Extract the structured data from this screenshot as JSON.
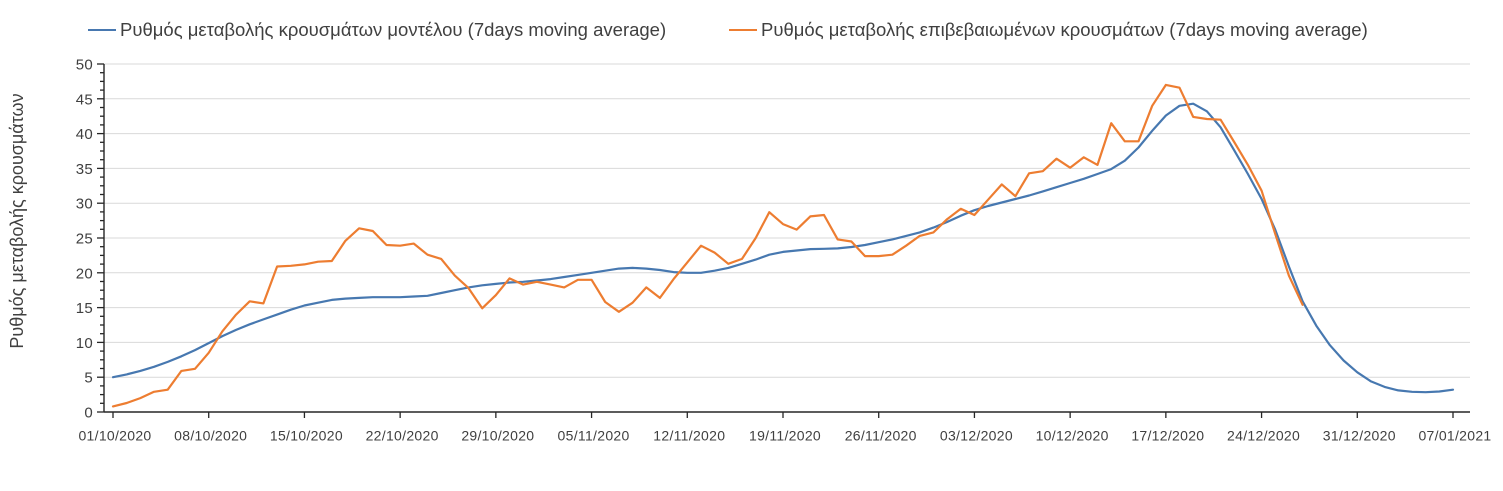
{
  "chart_data": {
    "type": "line",
    "title": "",
    "xlabel": "",
    "ylabel": "Ρυθμός μεταβολής κρουσμάτων",
    "ylim": [
      0,
      50
    ],
    "ytick_step": 5,
    "y_minor_step": 1.25,
    "grid": true,
    "legend_position": "top",
    "x_tick_labels": [
      "01/10/2020",
      "08/10/2020",
      "15/10/2020",
      "22/10/2020",
      "29/10/2020",
      "05/11/2020",
      "12/11/2020",
      "19/11/2020",
      "26/11/2020",
      "03/12/2020",
      "10/12/2020",
      "17/12/2020",
      "24/12/2020",
      "31/12/2020",
      "07/01/2021"
    ],
    "x_tick_interval_days": 7,
    "series": [
      {
        "name": "Ρυθμός μεταβολής κρουσμάτων μοντέλου (7days moving average)",
        "color": "#4778b0",
        "values": [
          5.0,
          5.4,
          5.9,
          6.5,
          7.2,
          8.0,
          8.9,
          9.9,
          10.9,
          11.8,
          12.6,
          13.3,
          14.0,
          14.7,
          15.3,
          15.7,
          16.1,
          16.3,
          16.4,
          16.5,
          16.5,
          16.5,
          16.6,
          16.7,
          17.1,
          17.5,
          17.9,
          18.2,
          18.4,
          18.6,
          18.7,
          18.9,
          19.1,
          19.4,
          19.7,
          20.0,
          20.3,
          20.6,
          20.7,
          20.6,
          20.4,
          20.1,
          20.0,
          20.0,
          20.3,
          20.7,
          21.3,
          21.9,
          22.6,
          23.0,
          23.2,
          23.4,
          23.45,
          23.5,
          23.7,
          24.0,
          24.4,
          24.8,
          25.3,
          25.8,
          26.5,
          27.3,
          28.2,
          29.0,
          29.6,
          30.1,
          30.6,
          31.1,
          31.7,
          32.3,
          32.9,
          33.5,
          34.2,
          34.9,
          36.1,
          38.0,
          40.4,
          42.6,
          44.0,
          44.3,
          43.2,
          40.9,
          37.6,
          34.2,
          30.6,
          26.2,
          20.9,
          15.9,
          12.4,
          9.6,
          7.4,
          5.7,
          4.4,
          3.6,
          3.1,
          2.9,
          2.85,
          2.95,
          3.2
        ]
      },
      {
        "name": "Ρυθμός μεταβολής επιβεβαιωμένων κρουσμάτων (7days moving average)",
        "color": "#ed7d31",
        "values": [
          0.8,
          1.3,
          2.0,
          2.9,
          3.2,
          5.9,
          6.2,
          8.5,
          11.6,
          14.0,
          15.9,
          15.6,
          20.9,
          21.0,
          21.2,
          21.6,
          21.7,
          24.6,
          26.4,
          26.0,
          24.0,
          23.9,
          24.2,
          22.6,
          22.0,
          19.6,
          17.8,
          14.9,
          16.8,
          19.2,
          18.3,
          18.7,
          18.3,
          17.9,
          19.0,
          19.0,
          15.8,
          14.4,
          15.7,
          17.9,
          16.4,
          19.1,
          21.5,
          23.9,
          22.9,
          21.3,
          22.0,
          25.0,
          28.7,
          27.0,
          26.2,
          28.1,
          28.3,
          24.8,
          24.5,
          22.4,
          22.4,
          22.6,
          23.9,
          25.3,
          25.8,
          27.7,
          29.2,
          28.3,
          30.5,
          32.7,
          31.0,
          34.3,
          34.6,
          36.4,
          35.1,
          36.6,
          35.5,
          41.5,
          38.9,
          38.9,
          44.0,
          47.0,
          46.6,
          42.4,
          42.1,
          42.0,
          38.8,
          35.5,
          31.8,
          25.6,
          19.6,
          15.4
        ]
      }
    ],
    "axis_color": "#262626",
    "grid_color": "#d9d9d9",
    "tick_label_color": "#3f3f3f"
  }
}
